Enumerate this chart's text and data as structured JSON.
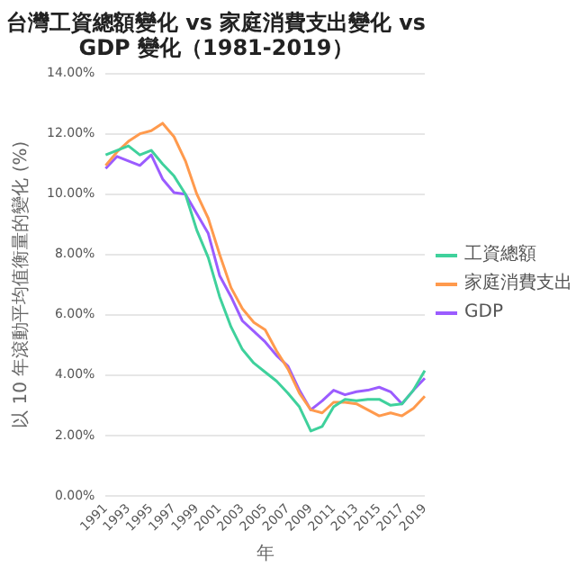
{
  "chart_data": {
    "type": "line",
    "title": "台灣工資總額變化 vs 家庭消費支出變化 vs GDP 變化（1981-2019）",
    "xlabel": "年",
    "ylabel": "以 10 年滾動平均值衡量的變化 (%)",
    "categories": [
      "1991",
      null,
      "1993",
      null,
      "1995",
      null,
      "1997",
      null,
      "1999",
      null,
      "2001",
      null,
      "2003",
      null,
      "2005",
      null,
      "2007",
      null,
      "2009",
      null,
      "2011",
      null,
      "2013",
      null,
      "2015",
      null,
      "2017",
      null,
      "2019"
    ],
    "series": [
      {
        "name": "工資總額",
        "color": "#3fd19c",
        "values": [
          11.3,
          11.45,
          11.6,
          11.3,
          11.45,
          11.0,
          10.6,
          10.0,
          8.8,
          7.9,
          6.6,
          5.6,
          4.85,
          4.4,
          4.1,
          3.8,
          3.4,
          2.95,
          2.15,
          2.3,
          2.95,
          3.2,
          3.15,
          3.2,
          3.2,
          3.0,
          3.05,
          3.5,
          4.15
        ]
      },
      {
        "name": "家庭消費支出",
        "color": "#ff9a4d",
        "values": [
          10.95,
          11.4,
          11.75,
          12.0,
          12.1,
          12.35,
          11.9,
          11.1,
          10.0,
          9.2,
          8.0,
          6.9,
          6.2,
          5.75,
          5.5,
          4.8,
          4.2,
          3.4,
          2.85,
          2.75,
          3.1,
          3.1,
          3.05,
          2.85,
          2.65,
          2.75,
          2.65,
          2.9,
          3.3
        ]
      },
      {
        "name": "GDP",
        "color": "#9b5cff",
        "values": [
          10.85,
          11.25,
          11.1,
          10.95,
          11.3,
          10.5,
          10.05,
          10.0,
          9.35,
          8.7,
          7.3,
          6.6,
          5.8,
          5.45,
          5.1,
          4.65,
          4.3,
          3.5,
          2.85,
          3.15,
          3.5,
          3.35,
          3.45,
          3.5,
          3.6,
          3.45,
          3.05,
          3.5,
          3.9
        ]
      }
    ],
    "ylim": [
      0,
      14
    ],
    "yticks": [
      {
        "value": 0,
        "label": "0.00%"
      },
      {
        "value": 2,
        "label": "2.00%"
      },
      {
        "value": 4,
        "label": "4.00%"
      },
      {
        "value": 6,
        "label": "6.00%"
      },
      {
        "value": 8,
        "label": "8.00%"
      },
      {
        "value": 10,
        "label": "10.00%"
      },
      {
        "value": 12,
        "label": "12.00%"
      },
      {
        "value": 14,
        "label": "14.00%"
      }
    ],
    "grid": "y",
    "legend": "right",
    "marker": "none",
    "line_style": "solid"
  }
}
